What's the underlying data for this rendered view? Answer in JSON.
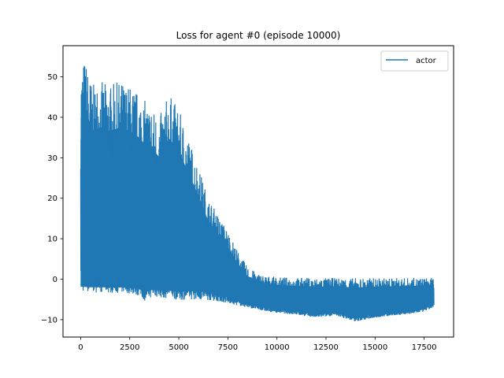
{
  "chart_data": {
    "type": "line",
    "title": "Loss for agent #0 (episode 10000)",
    "xlabel": "",
    "ylabel": "",
    "xlim": [
      -900,
      19000
    ],
    "ylim": [
      -14.3,
      57.7
    ],
    "xticks": [
      0,
      2500,
      5000,
      7500,
      10000,
      12500,
      15000,
      17500
    ],
    "xtick_labels": [
      "0",
      "2500",
      "5000",
      "7500",
      "10000",
      "12500",
      "15000",
      "17500"
    ],
    "yticks": [
      -10,
      0,
      10,
      20,
      30,
      40,
      50
    ],
    "ytick_labels": [
      "−10",
      "0",
      "10",
      "20",
      "30",
      "40",
      "50"
    ],
    "grid": false,
    "legend": {
      "position": "top-right",
      "entries": [
        "actor"
      ]
    },
    "series": [
      {
        "name": "actor",
        "color": "#1f77b4",
        "envelope": {
          "x": [
            0,
            200,
            600,
            1000,
            1500,
            2000,
            2500,
            3000,
            3300,
            3600,
            4000,
            4500,
            5000,
            5500,
            6000,
            6500,
            7000,
            7500,
            8000,
            8500,
            9000,
            9500,
            10000,
            11000,
            12000,
            13000,
            14000,
            15000,
            16000,
            17000,
            17500,
            18000
          ],
          "upper": [
            52,
            55,
            48,
            49,
            48,
            49,
            48,
            46,
            44,
            43,
            40,
            46,
            42,
            35,
            28,
            20,
            16,
            12,
            7,
            3,
            1.5,
            0.8,
            0.5,
            0.4,
            0.3,
            0.3,
            0.3,
            0.3,
            0.3,
            0.3,
            0.3,
            0.3
          ],
          "lower": [
            -3,
            -3.2,
            -3.3,
            -3.3,
            -3.4,
            -3.4,
            -3.6,
            -4.2,
            -5.5,
            -4.5,
            -4.6,
            -4.8,
            -5.2,
            -5.0,
            -5.0,
            -5.2,
            -5.5,
            -6.0,
            -6.5,
            -7.0,
            -7.5,
            -8.0,
            -8.3,
            -8.8,
            -9.5,
            -9.0,
            -10.5,
            -9.5,
            -9.0,
            -8.5,
            -8.0,
            -7.0
          ]
        }
      }
    ]
  }
}
